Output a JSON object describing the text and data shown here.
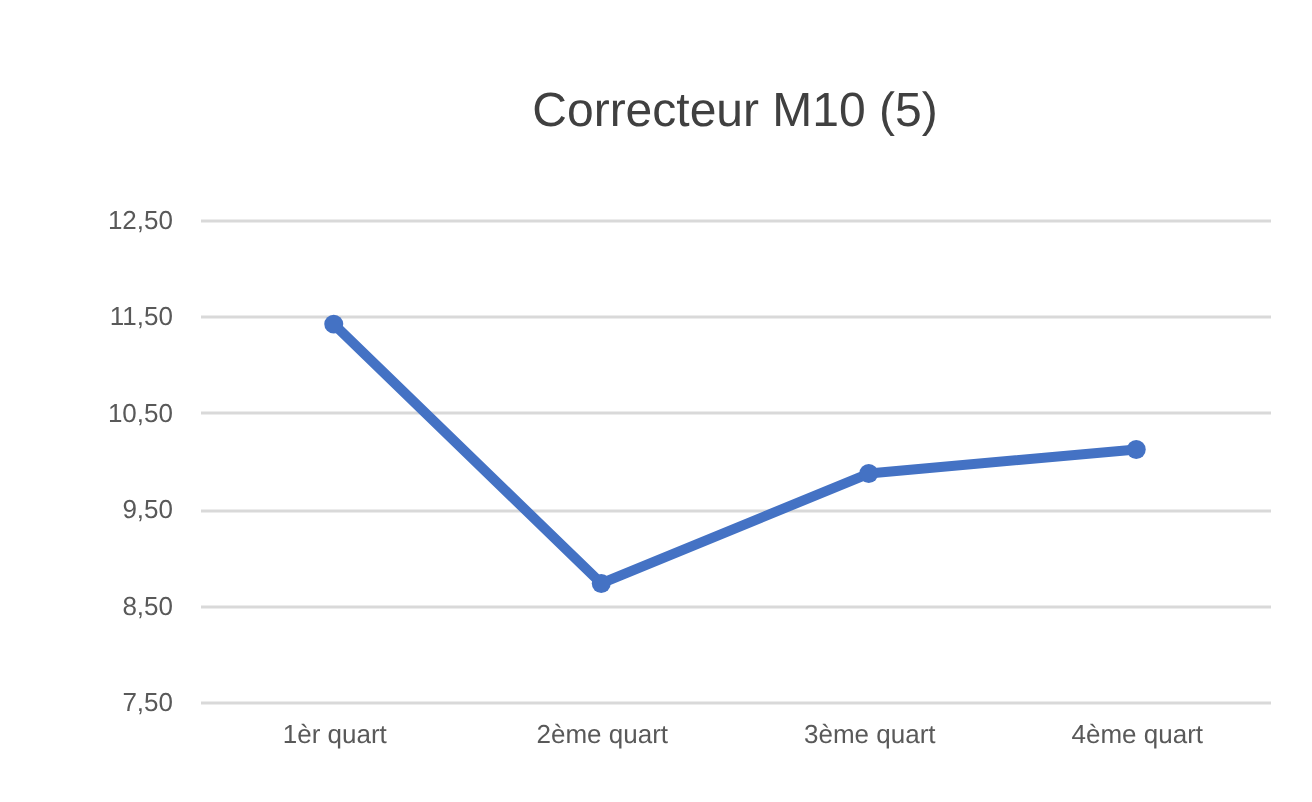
{
  "chart_data": {
    "type": "line",
    "title": "Correcteur M10 (5)",
    "categories": [
      "1èr quart",
      "2ème quart",
      "3ème quart",
      "4ème quart"
    ],
    "series": [
      {
        "color": "#4472c4",
        "values": [
          11.42,
          8.73,
          9.87,
          10.12
        ]
      }
    ],
    "ylim": [
      7.5,
      12.5
    ],
    "yticks": [
      {
        "value": 7.5,
        "label": "7,50"
      },
      {
        "value": 8.5,
        "label": "8,50"
      },
      {
        "value": 9.5,
        "label": "9,50"
      },
      {
        "value": 10.5,
        "label": "10,50"
      },
      {
        "value": 11.5,
        "label": "11,50"
      },
      {
        "value": 12.5,
        "label": "12,50"
      }
    ],
    "grid": "y",
    "marker": "circle",
    "line_style": "solid"
  }
}
